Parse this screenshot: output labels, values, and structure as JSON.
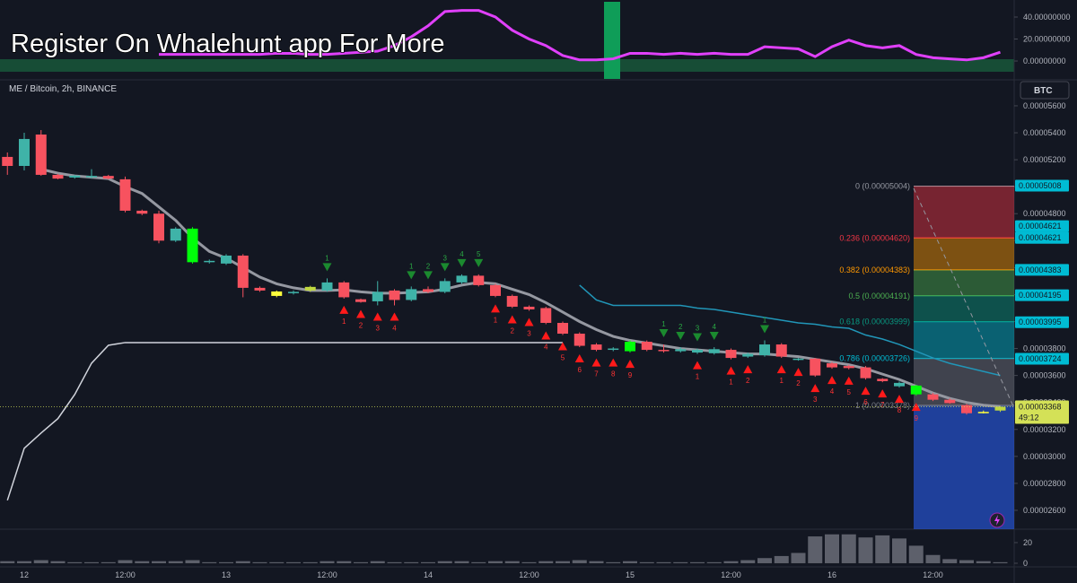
{
  "banner": "Register On Whalehunt app For More",
  "currency": "BTC",
  "countdown": "49:12",
  "chart_data": [
    {
      "type": "candlestick",
      "title": "ME / Bitcoin, 2h, BINANCE",
      "categories": [
        null,
        "12",
        null,
        null,
        null,
        null,
        null,
        "12:00",
        null,
        null,
        null,
        null,
        null,
        "13",
        null,
        null,
        null,
        null,
        null,
        "12:00",
        null,
        null,
        null,
        null,
        null,
        "14",
        null,
        null,
        null,
        null,
        null,
        "12:00",
        null,
        null,
        null,
        null,
        null,
        "15",
        null,
        null,
        null,
        null,
        null,
        "12:00",
        null,
        null,
        null,
        null,
        null,
        "16",
        null,
        null,
        null,
        null,
        null,
        "12:00",
        null,
        null,
        null,
        null
      ],
      "open": [
        5.221e-05,
        5.154e-05,
        5.387e-05,
        5.088e-05,
        5.068e-05,
        5.07e-05,
        5.08e-05,
        5.055e-05,
        4.822e-05,
        4.8e-05,
        4.6e-05,
        4.689e-05,
        4.44e-05,
        4.43e-05,
        4.489e-05,
        4.25e-05,
        4.223e-05,
        4.21e-05,
        4.23e-05,
        4.23e-05,
        4.29e-05,
        4.165e-05,
        4.15e-05,
        4.23e-05,
        4.16e-05,
        4.24e-05,
        4.22e-05,
        4.29e-05,
        4.34e-05,
        4.27e-05,
        4.19e-05,
        4.11e-05,
        4.1e-05,
        3.99e-05,
        3.91e-05,
        3.83e-05,
        3.79e-05,
        3.78e-05,
        3.85e-05,
        3.79e-05,
        3.78e-05,
        3.77e-05,
        3.765e-05,
        3.79e-05,
        3.74e-05,
        3.75e-05,
        3.83e-05,
        3.715e-05,
        3.725e-05,
        3.69e-05,
        3.67e-05,
        3.66e-05,
        3.575e-05,
        3.52e-05,
        3.525e-05,
        3.46e-05,
        3.42e-05,
        3.38e-05,
        3.33e-05,
        3.34e-05
      ],
      "high": [
        5.254e-05,
        5.4e-05,
        5.42e-05,
        5.095e-05,
        5.088e-05,
        5.13e-05,
        5.088e-05,
        5.075e-05,
        4.83e-05,
        4.822e-05,
        4.7e-05,
        4.7e-05,
        4.46e-05,
        4.5e-05,
        4.5e-05,
        4.26e-05,
        4.23e-05,
        4.23e-05,
        4.265e-05,
        4.32e-05,
        4.3e-05,
        4.17e-05,
        4.3e-05,
        4.24e-05,
        4.26e-05,
        4.26e-05,
        4.32e-05,
        4.35e-05,
        4.35e-05,
        4.28e-05,
        4.2e-05,
        4.12e-05,
        4.11e-05,
        4e-05,
        3.92e-05,
        3.84e-05,
        3.81e-05,
        3.86e-05,
        3.86e-05,
        3.83e-05,
        3.81e-05,
        3.8e-05,
        3.81e-05,
        3.8e-05,
        3.77e-05,
        3.86e-05,
        3.84e-05,
        3.73e-05,
        3.73e-05,
        3.7e-05,
        3.68e-05,
        3.67e-05,
        3.58e-05,
        3.555e-05,
        3.53e-05,
        3.47e-05,
        3.43e-05,
        3.39e-05,
        3.34e-05,
        3.372e-05
      ],
      "low": [
        5.088e-05,
        5.121e-05,
        5.081e-05,
        5.055e-05,
        5.06e-05,
        5.06e-05,
        5.055e-05,
        4.81e-05,
        4.789e-05,
        4.58e-05,
        4.59e-05,
        4.43e-05,
        4.43e-05,
        4.42e-05,
        4.18e-05,
        4.22e-05,
        4.18e-05,
        4.2e-05,
        4.22e-05,
        4.22e-05,
        4.17e-05,
        4.14e-05,
        4.12e-05,
        4.12e-05,
        4.15e-05,
        4.21e-05,
        4.21e-05,
        4.28e-05,
        4.26e-05,
        4.18e-05,
        4.1e-05,
        4.08e-05,
        3.98e-05,
        3.9e-05,
        3.81e-05,
        3.78e-05,
        3.78e-05,
        3.77e-05,
        3.78e-05,
        3.77e-05,
        3.77e-05,
        3.76e-05,
        3.755e-05,
        3.72e-05,
        3.73e-05,
        3.74e-05,
        3.73e-05,
        3.71e-05,
        3.59e-05,
        3.65e-05,
        3.645e-05,
        3.57e-05,
        3.55e-05,
        3.51e-05,
        3.45e-05,
        3.41e-05,
        3.39e-05,
        3.31e-05,
        3.318e-05,
        3.33e-05
      ],
      "close": [
        5.154e-05,
        5.354e-05,
        5.088e-05,
        5.06e-05,
        5.082e-05,
        5.08e-05,
        5.06e-05,
        4.822e-05,
        4.8e-05,
        4.6e-05,
        4.689e-05,
        4.44e-05,
        4.45e-05,
        4.489e-05,
        4.25e-05,
        4.23e-05,
        4.19e-05,
        4.22e-05,
        4.257e-05,
        4.29e-05,
        4.18e-05,
        4.145e-05,
        4.22e-05,
        4.16e-05,
        4.24e-05,
        4.22e-05,
        4.3e-05,
        4.34e-05,
        4.27e-05,
        4.19e-05,
        4.11e-05,
        4.09e-05,
        3.99e-05,
        3.91e-05,
        3.82e-05,
        3.79e-05,
        3.8e-05,
        3.85e-05,
        3.79e-05,
        3.78e-05,
        3.795e-05,
        3.79e-05,
        3.795e-05,
        3.73e-05,
        3.76e-05,
        3.83e-05,
        3.74e-05,
        3.725e-05,
        3.6e-05,
        3.66e-05,
        3.655e-05,
        3.58e-05,
        3.558e-05,
        3.545e-05,
        3.46e-05,
        3.42e-05,
        3.395e-05,
        3.32e-05,
        3.325e-05,
        3.368e-05
      ],
      "colors": [
        "#f7525f",
        "#3fb3a8",
        "#f7525f",
        "#f7525f",
        "#3fb3a8",
        "#3fb3a8",
        "#f7525f",
        "#f7525f",
        "#f7525f",
        "#f7525f",
        "#3fb3a8",
        "#00ff0a",
        "#3fb3a8",
        "#3fb3a8",
        "#f7525f",
        "#f7525f",
        "#ffff3c",
        "#3fb3a8",
        "#c0d840",
        "#3fb3a8",
        "#f7525f",
        "#f7525f",
        "#3fb3a8",
        "#f7525f",
        "#3fb3a8",
        "#f7525f",
        "#3fb3a8",
        "#3fb3a8",
        "#f7525f",
        "#f7525f",
        "#f7525f",
        "#f7525f",
        "#f7525f",
        "#f7525f",
        "#f7525f",
        "#f7525f",
        "#3fb3a8",
        "#00ff0a",
        "#f7525f",
        "#f7525f",
        "#3fb3a8",
        "#3fb3a8",
        "#3fb3a8",
        "#f7525f",
        "#3fb3a8",
        "#3fb3a8",
        "#f7525f",
        "#3fb3a8",
        "#f7525f",
        "#f7525f",
        "#f7525f",
        "#f7525f",
        "#f7525f",
        "#3fb3a8",
        "#00ff0a",
        "#f7525f",
        "#f7525f",
        "#f7525f",
        "#ffff3c",
        "#c0d840"
      ],
      "series": [
        {
          "color": "#9598a1",
          "width": 3,
          "values": [
            null,
            null,
            5.13e-05,
            5.1e-05,
            5.08e-05,
            5.07e-05,
            5.06e-05,
            5e-05,
            4.95e-05,
            4.85e-05,
            4.75e-05,
            4.62e-05,
            4.52e-05,
            4.47e-05,
            4.4e-05,
            4.33e-05,
            4.28e-05,
            4.25e-05,
            4.23e-05,
            4.23e-05,
            4.235e-05,
            4.22e-05,
            4.21e-05,
            4.21e-05,
            4.215e-05,
            4.22e-05,
            4.24e-05,
            4.27e-05,
            4.29e-05,
            4.28e-05,
            4.24e-05,
            4.2e-05,
            4.14e-05,
            4.07e-05,
            4e-05,
            3.94e-05,
            3.89e-05,
            3.86e-05,
            3.84e-05,
            3.82e-05,
            3.8e-05,
            3.79e-05,
            3.78e-05,
            3.77e-05,
            3.76e-05,
            3.76e-05,
            3.75e-05,
            3.74e-05,
            3.72e-05,
            3.7e-05,
            3.68e-05,
            3.65e-05,
            3.61e-05,
            3.57e-05,
            3.52e-05,
            3.47e-05,
            3.43e-05,
            3.4e-05,
            3.38e-05,
            3.37e-05
          ]
        },
        {
          "color": "#d1d4dc",
          "width": 1.5,
          "values": [
            2.674e-05,
            3.06e-05,
            3.173e-05,
            3.28e-05,
            3.459e-05,
            3.691e-05,
            3.824e-05,
            3.844e-05,
            3.844e-05,
            3.844e-05,
            3.844e-05,
            3.844e-05,
            3.844e-05,
            3.844e-05,
            3.844e-05,
            3.844e-05,
            3.844e-05,
            3.844e-05,
            3.844e-05,
            3.844e-05,
            3.844e-05,
            3.844e-05,
            3.844e-05,
            3.844e-05,
            3.844e-05,
            3.844e-05,
            3.844e-05,
            3.844e-05,
            3.844e-05,
            3.844e-05,
            3.844e-05,
            3.844e-05,
            3.844e-05,
            3.844e-05,
            null,
            null,
            null,
            null,
            null,
            null,
            null,
            null,
            null,
            null,
            null,
            null,
            null,
            null,
            null,
            null,
            null,
            null,
            null,
            null,
            null,
            null,
            null,
            null,
            null,
            null
          ]
        },
        {
          "color": "#2196b8",
          "width": 1.5,
          "values": [
            null,
            null,
            null,
            null,
            null,
            null,
            null,
            null,
            null,
            null,
            null,
            null,
            null,
            null,
            null,
            null,
            null,
            null,
            null,
            null,
            null,
            null,
            null,
            null,
            null,
            null,
            null,
            null,
            null,
            null,
            null,
            null,
            null,
            null,
            4.27e-05,
            4.16e-05,
            4.12e-05,
            4.12e-05,
            4.12e-05,
            4.12e-05,
            4.12e-05,
            4.1e-05,
            4.09e-05,
            4.07e-05,
            4.05e-05,
            4.03e-05,
            4.01e-05,
            3.99e-05,
            3.98e-05,
            3.96e-05,
            3.95e-05,
            3.9e-05,
            3.87e-05,
            3.83e-05,
            3.78e-05,
            3.73e-05,
            3.69e-05,
            3.66e-05,
            3.63e-05,
            3.6e-05
          ]
        }
      ],
      "buy_setup": [
        null,
        null,
        null,
        null,
        null,
        null,
        null,
        null,
        null,
        null,
        null,
        null,
        null,
        null,
        null,
        null,
        null,
        null,
        null,
        null,
        "1",
        "2",
        "3",
        "4",
        null,
        null,
        null,
        null,
        null,
        "1",
        "2",
        "3",
        "4",
        "5",
        "6",
        "7",
        "8",
        "9",
        null,
        null,
        null,
        "1",
        null,
        "1",
        "2",
        null,
        "1",
        "2",
        "3",
        "4",
        "5",
        "6",
        "7",
        "8",
        "9",
        null,
        null,
        null,
        null,
        null
      ],
      "sell_setup": [
        null,
        null,
        null,
        null,
        null,
        null,
        null,
        null,
        null,
        null,
        null,
        null,
        null,
        null,
        null,
        null,
        null,
        null,
        null,
        "1",
        null,
        null,
        null,
        null,
        "1",
        "2",
        "3",
        "4",
        "5",
        null,
        null,
        null,
        null,
        null,
        null,
        null,
        null,
        null,
        null,
        "1",
        "2",
        "3",
        "4",
        null,
        null,
        "1",
        null,
        null,
        null,
        null,
        null,
        null,
        null,
        null,
        null,
        null,
        null,
        null,
        null,
        null
      ],
      "fib_levels": [
        {
          "label": "0 (0.00005004)",
          "value": 5.004e-05,
          "color": "#9598a1"
        },
        {
          "label": "0.236 (0.00004620)",
          "value": 4.62e-05,
          "color": "#f23645"
        },
        {
          "label": "0.382 (0.00004383)",
          "value": 4.383e-05,
          "color": "#ff9800"
        },
        {
          "label": "0.5 (0.00004191)",
          "value": 4.191e-05,
          "color": "#4caf50"
        },
        {
          "label": "0.618 (0.00003999)",
          "value": 3.999e-05,
          "color": "#089981"
        },
        {
          "label": "0.786 (0.00003726)",
          "value": 3.726e-05,
          "color": "#00bcd4"
        },
        {
          "label": "1 (0.00003378)",
          "value": 3.378e-05,
          "color": "#787b86"
        }
      ],
      "price_tags": [
        {
          "value": 5.008e-05,
          "label": "0.00005008",
          "color": "#00bcd4"
        },
        {
          "value": 4.621e-05,
          "label": "0.00004621",
          "color": "#00bcd4"
        },
        {
          "value": 4.621e-05,
          "label": "0.00004621",
          "color": "#00bcd4"
        },
        {
          "value": 4.621e-05,
          "label": "0.00004621",
          "color": "#00bcd4"
        },
        {
          "value": 4.383e-05,
          "label": "0.00004383",
          "color": "#00bcd4"
        },
        {
          "value": 4.195e-05,
          "label": "0.00004195",
          "color": "#00bcd4"
        },
        {
          "value": 3.995e-05,
          "label": "0.00003995",
          "color": "#00bcd4"
        },
        {
          "value": 3.724e-05,
          "label": "0.00003724",
          "color": "#00bcd4"
        },
        {
          "value": 3.368e-05,
          "label": "0.00003368",
          "color": "#d4e157"
        }
      ],
      "ylim": [
        2.46e-05,
        5.786e-05
      ],
      "yticks": [
        {
          "value": 5.6e-05,
          "label": "0.00005600"
        },
        {
          "value": 5.4e-05,
          "label": "0.00005400"
        },
        {
          "value": 5.2e-05,
          "label": "0.00005200"
        },
        {
          "value": 5e-05,
          "label": "0.00005000"
        },
        {
          "value": 4.8e-05,
          "label": "0.00004800"
        },
        {
          "value": 4.6e-05,
          "label": "0.00004600"
        },
        {
          "value": 4.4e-05,
          "label": "0.00004400"
        },
        {
          "value": 4.2e-05,
          "label": "0.00004200"
        },
        {
          "value": 4e-05,
          "label": "0.00004000"
        },
        {
          "value": 3.8e-05,
          "label": "0.00003800"
        },
        {
          "value": 3.6e-05,
          "label": "0.00003600"
        },
        {
          "value": 3.4e-05,
          "label": "0.00003400"
        },
        {
          "value": 3.2e-05,
          "label": "0.00003200"
        },
        {
          "value": 3e-05,
          "label": "0.00003000"
        },
        {
          "value": 2.8e-05,
          "label": "0.00002800"
        },
        {
          "value": 2.6e-05,
          "label": "0.00002600"
        }
      ],
      "grid": false
    },
    {
      "type": "line",
      "series": [
        {
          "color": "#e040fb",
          "width": 3,
          "values": [
            null,
            null,
            null,
            null,
            null,
            null,
            null,
            null,
            null,
            6,
            6,
            6,
            6,
            6,
            6,
            6,
            7,
            7,
            6,
            6,
            7,
            8,
            9,
            14,
            22,
            32,
            45,
            46,
            46,
            40,
            28,
            20,
            14,
            5,
            1,
            1,
            2,
            7,
            7,
            6,
            7,
            6,
            7,
            6,
            6,
            13,
            12,
            11,
            4,
            13,
            19,
            14,
            12,
            14,
            6,
            3,
            2,
            1,
            3,
            8
          ]
        }
      ],
      "ylim": [
        -16.3,
        55.5
      ],
      "yticks": [
        {
          "value": 40,
          "label": "40.00000000"
        },
        {
          "value": 20,
          "label": "20.00000000"
        },
        {
          "value": 0,
          "label": "0.00000000"
        }
      ]
    },
    {
      "type": "bar",
      "values": [
        2,
        2,
        3,
        2,
        1,
        1,
        1,
        3,
        2,
        2,
        2,
        3,
        1,
        1,
        2,
        1,
        1,
        1,
        1,
        2,
        2,
        1,
        2,
        1,
        1,
        1,
        2,
        2,
        1,
        2,
        2,
        1,
        2,
        2,
        3,
        2,
        1,
        2,
        1,
        1,
        1,
        1,
        1,
        2,
        3,
        5,
        7,
        10,
        26,
        28,
        28,
        25,
        27,
        24,
        17,
        8,
        4,
        3,
        2,
        1
      ],
      "color": "#5d606b",
      "ylim": [
        -3.5,
        33
      ],
      "yticks": [
        20,
        0
      ]
    }
  ]
}
